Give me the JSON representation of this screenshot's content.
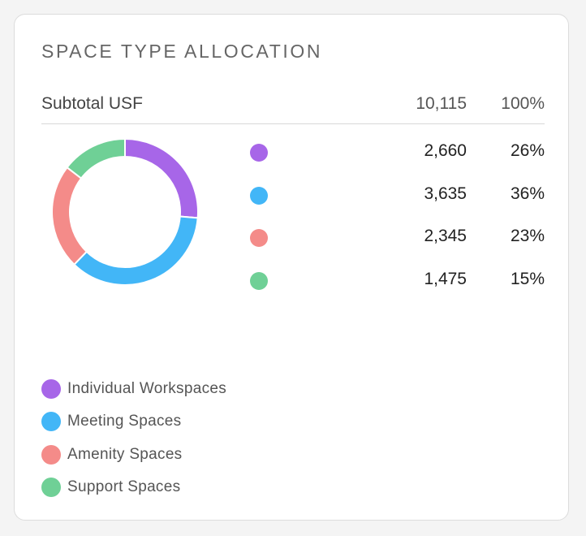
{
  "card": {
    "title": "SPACE TYPE ALLOCATION",
    "subtotal": {
      "label": "Subtotal USF",
      "value": "10,115",
      "percent": "100%"
    }
  },
  "colors": {
    "individual": "#a766e8",
    "meeting": "#42b6f7",
    "amenity": "#f48b89",
    "support": "#6fd096",
    "ring_bg": "#ffffff"
  },
  "chart_data": {
    "type": "pie",
    "variant": "donut",
    "title": "SPACE TYPE ALLOCATION",
    "categories": [
      "Individual Workspaces",
      "Meeting Spaces",
      "Amenity Spaces",
      "Support Spaces"
    ],
    "values": [
      2660,
      3635,
      2345,
      1475
    ],
    "value_labels": [
      "2,660",
      "3,635",
      "2,345",
      "1,475"
    ],
    "percent_labels": [
      "26%",
      "36%",
      "23%",
      "15%"
    ],
    "colors": [
      "#a766e8",
      "#42b6f7",
      "#f48b89",
      "#6fd096"
    ],
    "legend_placement": "bottom-left"
  }
}
